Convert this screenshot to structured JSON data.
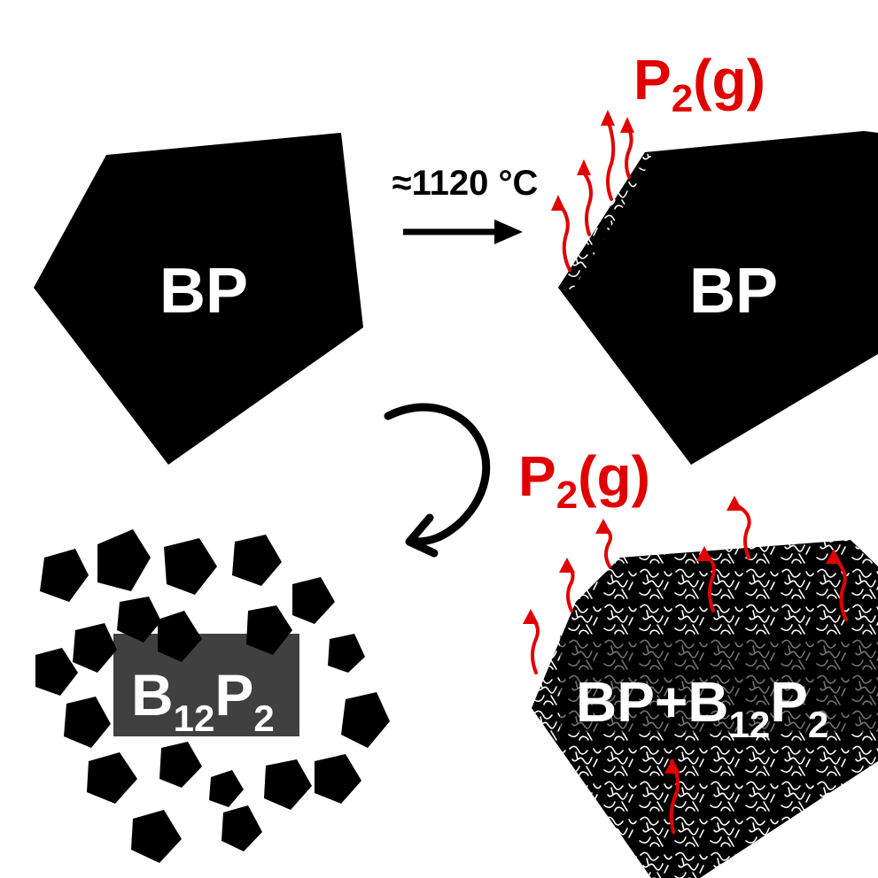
{
  "panels": {
    "initial": {
      "label": "BP"
    },
    "heating": {
      "condition": "≈1120 °C",
      "label": "BP",
      "gas": {
        "species": "P",
        "subscript": "2",
        "state": "(g)"
      }
    },
    "decomposing": {
      "label_a": "BP+B",
      "label_a_sub": "12",
      "label_b": "P",
      "label_b_sub": "2",
      "gas": {
        "species": "P",
        "subscript": "2",
        "state": "(g)"
      }
    },
    "final": {
      "label": "B",
      "label_sub": "12",
      "label_b": "P",
      "label_b_sub": "2"
    }
  },
  "colors": {
    "solid": "#000000",
    "gas_arrow": "#e00000",
    "surface_texture": "#ffffff",
    "label_box": "#3a3a3a"
  }
}
